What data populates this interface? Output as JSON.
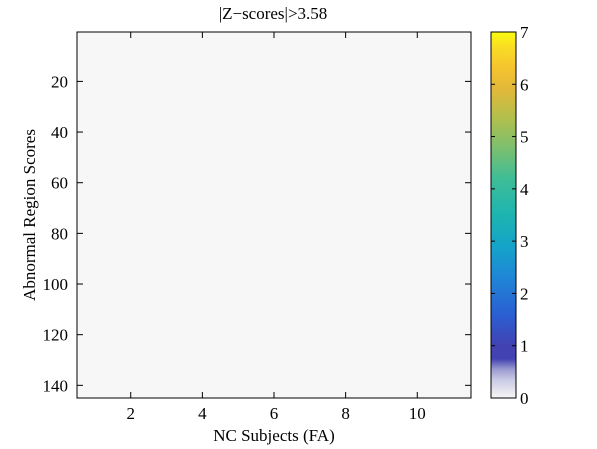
{
  "chart_data": {
    "type": "heatmap",
    "title": "|Z−scores|>3.58",
    "xlabel": "NC Subjects (FA)",
    "ylabel": "Abnormal Region Scores",
    "xlim": [
      0.5,
      11.5
    ],
    "ylim": [
      145,
      0.5
    ],
    "xticks": [
      2,
      4,
      6,
      8,
      10
    ],
    "yticks": [
      20,
      40,
      60,
      80,
      100,
      120,
      140
    ],
    "grid": false,
    "value_range": [
      0,
      7
    ],
    "cell_value": 0,
    "colorbar": {
      "ticks": [
        0,
        1,
        2,
        3,
        4,
        5,
        6,
        7
      ],
      "colors": [
        "#f7f7f7",
        "#c9c9e4",
        "#9a9ad2",
        "#4242b2",
        "#2b5fd2",
        "#1f86d6",
        "#14a4c9",
        "#1db4b0",
        "#3fbd96",
        "#7ebf6d",
        "#b5bf4a",
        "#e2b83a",
        "#f4c32e",
        "#f9dc25",
        "#f9fb0e"
      ]
    }
  },
  "colors": {
    "plot_background": "#f7f7f7",
    "axis": "#000000"
  }
}
